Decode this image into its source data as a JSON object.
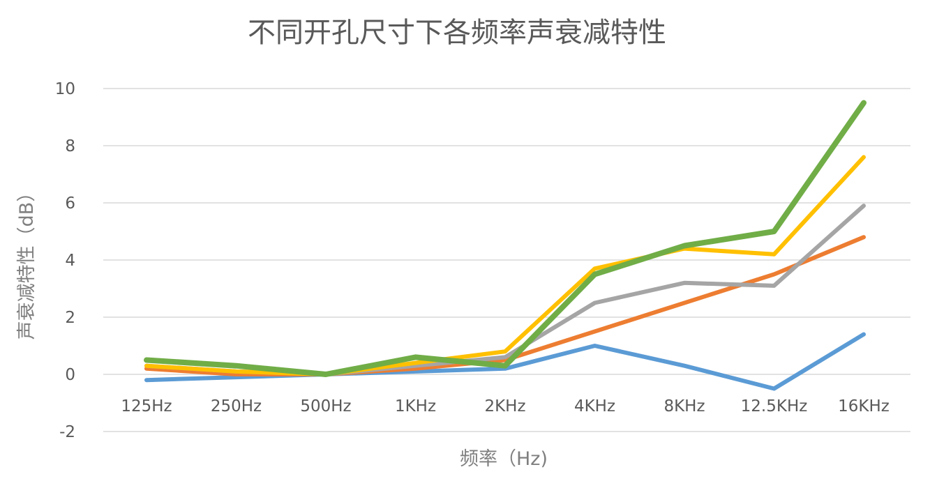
{
  "chart_data": {
    "type": "line",
    "title": "不同开孔尺寸下各频率声衰减特性",
    "xlabel": "频率（Hz)",
    "ylabel": "声衰减特性（dB）",
    "categories": [
      "125Hz",
      "250Hz",
      "500Hz",
      "1KHz",
      "2KHz",
      "4KHz",
      "8KHz",
      "12.5KHz",
      "16KHz"
    ],
    "ylim": [
      -2,
      10
    ],
    "yticks": [
      -2,
      0,
      2,
      4,
      6,
      8,
      10
    ],
    "grid": true,
    "legend": "none",
    "series": [
      {
        "color": "#5b9bd5",
        "values": [
          -0.2,
          -0.1,
          0,
          0.1,
          0.2,
          1.0,
          0.3,
          -0.5,
          1.4
        ]
      },
      {
        "color": "#ed7d31",
        "values": [
          0.2,
          0.0,
          0,
          0.2,
          0.5,
          1.5,
          2.5,
          3.5,
          4.8
        ]
      },
      {
        "color": "#a5a5a5",
        "values": [
          0.3,
          0.1,
          0,
          0.3,
          0.6,
          2.5,
          3.2,
          3.1,
          5.9
        ]
      },
      {
        "color": "#ffc000",
        "values": [
          0.3,
          0.1,
          0,
          0.4,
          0.8,
          3.7,
          4.4,
          4.2,
          7.6
        ]
      },
      {
        "color": "#70ad47",
        "values": [
          0.5,
          0.3,
          0,
          0.6,
          0.3,
          3.5,
          4.5,
          5.0,
          9.5
        ]
      }
    ]
  }
}
